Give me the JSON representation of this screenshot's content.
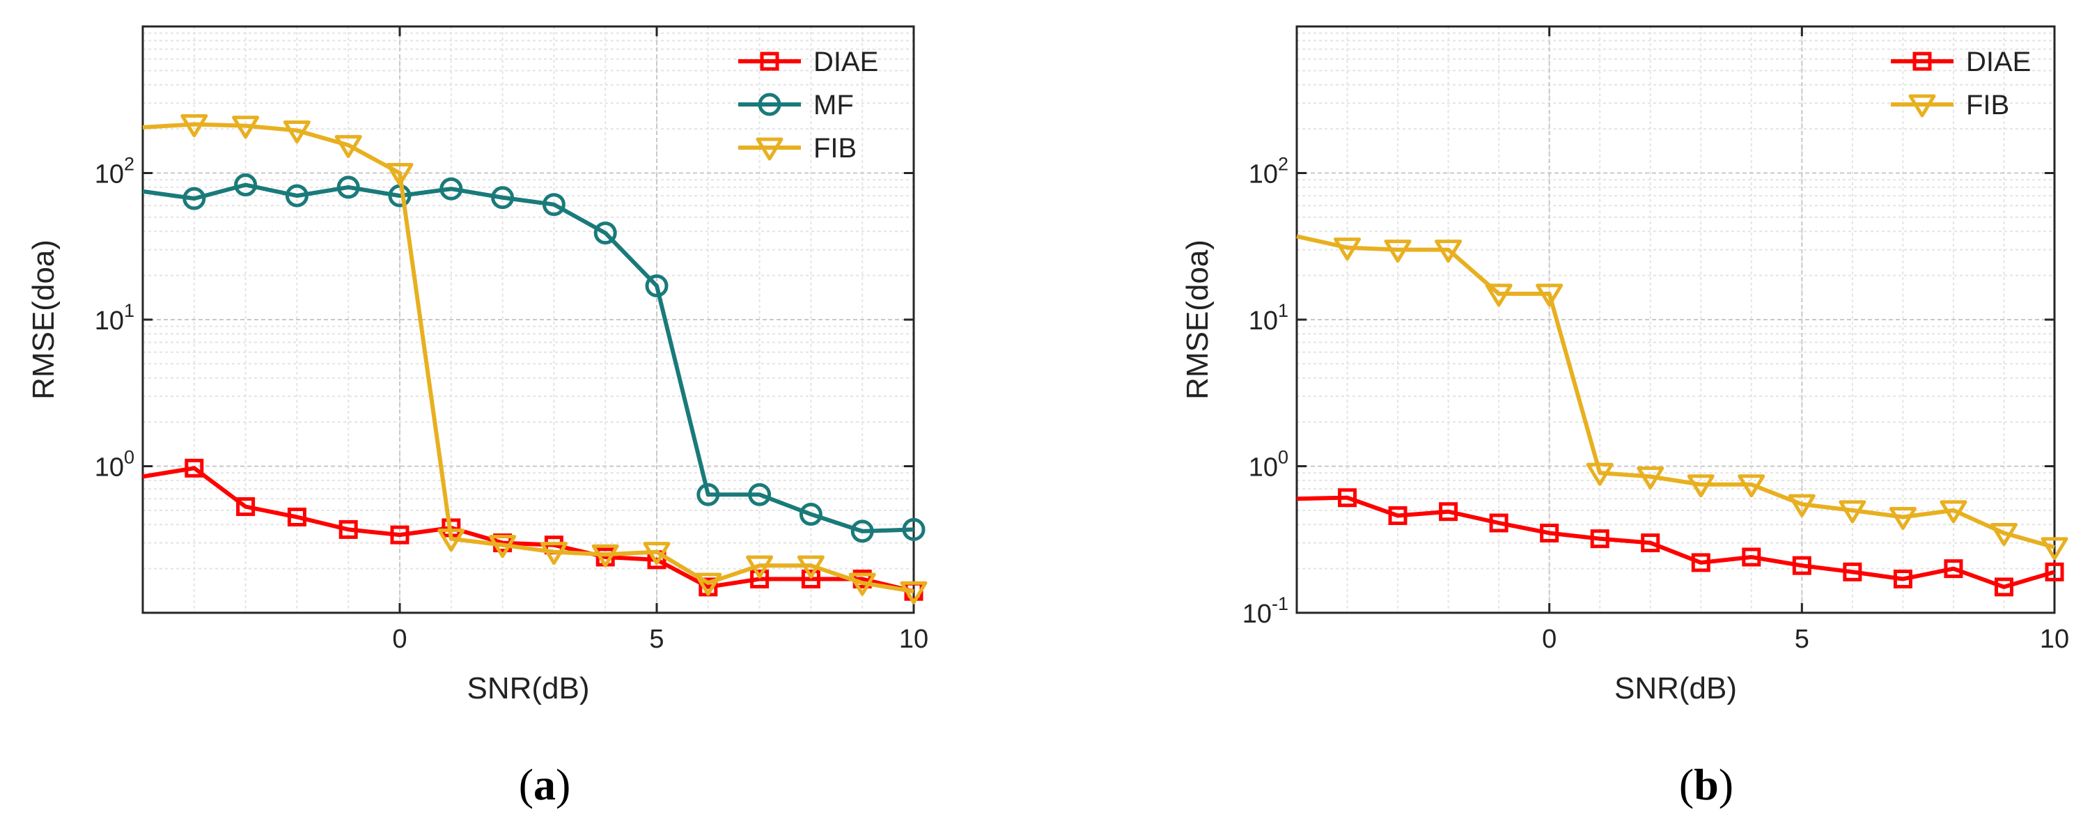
{
  "chart_data": [
    {
      "type": "line",
      "panel_label": "(a)",
      "xlabel": "SNR(dB)",
      "ylabel": "RMSE(doa)",
      "yscale": "log",
      "xlim": [
        -5,
        10
      ],
      "ylim": [
        0.1,
        1000
      ],
      "xticks": [
        0,
        5,
        10
      ],
      "xtick_labels": [
        "0",
        "5",
        "10"
      ],
      "yticks": [
        1,
        10,
        100
      ],
      "ytick_labels": [
        {
          "base": "10",
          "exp": "0"
        },
        {
          "base": "10",
          "exp": "1"
        },
        {
          "base": "10",
          "exp": "2"
        }
      ],
      "grid": true,
      "minor_grid": true,
      "legend_position": "top-right",
      "x": [
        -5,
        -4,
        -3,
        -2,
        -1,
        0,
        1,
        2,
        3,
        4,
        5,
        6,
        7,
        8,
        9,
        10
      ],
      "series": [
        {
          "name": "DIAE",
          "color": "#ff0000",
          "marker": "square",
          "values": [
            0.85,
            0.97,
            0.53,
            0.45,
            0.37,
            0.34,
            0.38,
            0.3,
            0.29,
            0.24,
            0.23,
            0.15,
            0.17,
            0.17,
            0.17,
            0.14
          ]
        },
        {
          "name": "MF",
          "color": "#1a7a7a",
          "marker": "circle",
          "values": [
            75,
            67,
            83,
            70,
            80,
            70,
            78,
            68,
            61,
            39,
            17,
            0.64,
            0.64,
            0.47,
            0.36,
            0.37
          ]
        },
        {
          "name": "FIB",
          "color": "#e8b020",
          "marker": "triangle-down",
          "values": [
            205,
            215,
            210,
            195,
            155,
            100,
            0.32,
            0.29,
            0.26,
            0.25,
            0.26,
            0.16,
            0.21,
            0.21,
            0.16,
            0.14
          ]
        }
      ]
    },
    {
      "type": "line",
      "panel_label": "(b)",
      "xlabel": "SNR(dB)",
      "ylabel": "RMSE(doa)",
      "yscale": "log",
      "xlim": [
        -5,
        10
      ],
      "ylim": [
        0.1,
        1000
      ],
      "xticks": [
        0,
        5,
        10
      ],
      "xtick_labels": [
        "0",
        "5",
        "10"
      ],
      "yticks": [
        0.1,
        1,
        10,
        100
      ],
      "ytick_labels": [
        {
          "base": "10",
          "exp": "-1"
        },
        {
          "base": "10",
          "exp": "0"
        },
        {
          "base": "10",
          "exp": "1"
        },
        {
          "base": "10",
          "exp": "2"
        }
      ],
      "grid": true,
      "minor_grid": true,
      "legend_position": "top-right",
      "x": [
        -5,
        -4,
        -3,
        -2,
        -1,
        0,
        1,
        2,
        3,
        4,
        5,
        6,
        7,
        8,
        9,
        10
      ],
      "series": [
        {
          "name": "DIAE",
          "color": "#ff0000",
          "marker": "square",
          "values": [
            0.6,
            0.61,
            0.46,
            0.49,
            0.41,
            0.35,
            0.32,
            0.3,
            0.22,
            0.24,
            0.21,
            0.19,
            0.17,
            0.2,
            0.15,
            0.19
          ]
        },
        {
          "name": "FIB",
          "color": "#e8b020",
          "marker": "triangle-down",
          "values": [
            37,
            31,
            30,
            30,
            15,
            15,
            0.9,
            0.85,
            0.75,
            0.75,
            0.55,
            0.5,
            0.45,
            0.5,
            0.35,
            0.28
          ]
        }
      ]
    }
  ]
}
